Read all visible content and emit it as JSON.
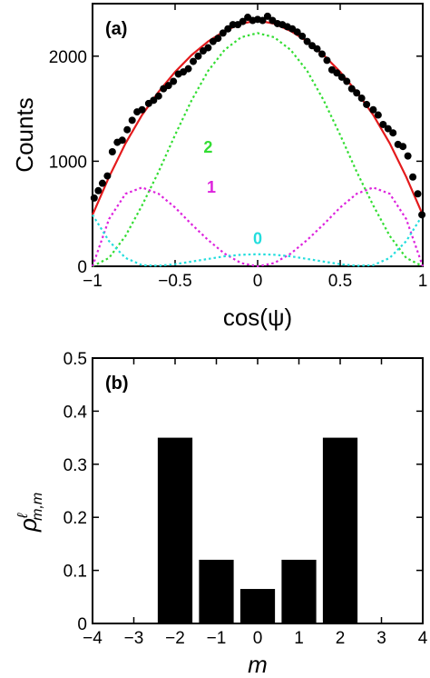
{
  "chart_data": [
    {
      "type": "scatter",
      "panel_label": "(a)",
      "xlabel": "cos(ψ)",
      "ylabel": "Counts",
      "xlim": [
        -1,
        1
      ],
      "ylim": [
        0,
        2500
      ],
      "x_ticks": [
        -1,
        -0.5,
        0,
        0.5,
        1
      ],
      "x_tick_labels": [
        "−1",
        "−0.5",
        "0",
        "0.5",
        "1"
      ],
      "y_ticks": [
        0,
        1000,
        2000
      ],
      "y_tick_labels": [
        "0",
        "1000",
        "2000"
      ],
      "grid": false,
      "points": {
        "color": "#000000",
        "x": [
          -0.99,
          -0.965,
          -0.94,
          -0.91,
          -0.88,
          -0.85,
          -0.82,
          -0.79,
          -0.76,
          -0.73,
          -0.7,
          -0.66,
          -0.63,
          -0.6,
          -0.57,
          -0.54,
          -0.51,
          -0.48,
          -0.45,
          -0.42,
          -0.39,
          -0.36,
          -0.33,
          -0.3,
          -0.27,
          -0.24,
          -0.21,
          -0.18,
          -0.15,
          -0.12,
          -0.09,
          -0.06,
          -0.03,
          0.0,
          0.03,
          0.06,
          0.09,
          0.12,
          0.15,
          0.18,
          0.21,
          0.24,
          0.27,
          0.3,
          0.33,
          0.36,
          0.39,
          0.42,
          0.45,
          0.48,
          0.51,
          0.54,
          0.57,
          0.6,
          0.63,
          0.66,
          0.7,
          0.73,
          0.76,
          0.79,
          0.82,
          0.85,
          0.88,
          0.91,
          0.94,
          0.97,
          0.995
        ],
        "y": [
          650,
          720,
          790,
          860,
          1090,
          1180,
          1200,
          1300,
          1390,
          1470,
          1490,
          1550,
          1580,
          1620,
          1690,
          1720,
          1760,
          1830,
          1850,
          1880,
          1950,
          2000,
          2050,
          2080,
          2140,
          2170,
          2220,
          2260,
          2300,
          2300,
          2330,
          2370,
          2340,
          2350,
          2340,
          2380,
          2340,
          2310,
          2300,
          2280,
          2260,
          2230,
          2190,
          2140,
          2100,
          2070,
          2020,
          1960,
          1870,
          1840,
          1800,
          1760,
          1690,
          1650,
          1600,
          1540,
          1490,
          1440,
          1350,
          1310,
          1270,
          1160,
          1140,
          1050,
          850,
          690,
          490
        ]
      },
      "series": [
        {
          "name": "",
          "color": "#e41a1c",
          "style": "solid",
          "x": [
            -1,
            -0.9,
            -0.8,
            -0.7,
            -0.6,
            -0.5,
            -0.4,
            -0.3,
            -0.2,
            -0.1,
            0,
            0.1,
            0.2,
            0.3,
            0.4,
            0.5,
            0.6,
            0.7,
            0.8,
            0.9,
            1
          ],
          "y": [
            490,
            850,
            1170,
            1440,
            1660,
            1850,
            2010,
            2140,
            2240,
            2310,
            2340,
            2310,
            2240,
            2140,
            2010,
            1850,
            1660,
            1440,
            1170,
            850,
            490
          ]
        },
        {
          "name": "2",
          "color": "#33dd33",
          "style": "dotted",
          "x": [
            -1,
            -0.9,
            -0.8,
            -0.7,
            -0.6,
            -0.5,
            -0.4,
            -0.3,
            -0.2,
            -0.1,
            0,
            0.1,
            0.2,
            0.3,
            0.4,
            0.5,
            0.6,
            0.7,
            0.8,
            0.9,
            1
          ],
          "y": [
            0,
            80,
            290,
            580,
            900,
            1250,
            1580,
            1860,
            2060,
            2180,
            2220,
            2180,
            2060,
            1860,
            1580,
            1250,
            900,
            580,
            290,
            80,
            0
          ]
        },
        {
          "name": "1",
          "color": "#dd22dd",
          "style": "dotted",
          "x": [
            -1,
            -0.9,
            -0.8,
            -0.7,
            -0.6,
            -0.5,
            -0.4,
            -0.3,
            -0.2,
            -0.1,
            0,
            0.1,
            0.2,
            0.3,
            0.4,
            0.5,
            0.6,
            0.7,
            0.8,
            0.9,
            1
          ],
          "y": [
            0,
            450,
            690,
            750,
            690,
            560,
            400,
            250,
            120,
            30,
            0,
            30,
            120,
            250,
            400,
            560,
            690,
            750,
            690,
            450,
            0
          ]
        },
        {
          "name": "0",
          "color": "#22dddd",
          "style": "dotted",
          "x": [
            -1,
            -0.9,
            -0.8,
            -0.7,
            -0.6,
            -0.5,
            -0.4,
            -0.3,
            -0.2,
            -0.1,
            0,
            0.1,
            0.2,
            0.3,
            0.4,
            0.5,
            0.6,
            0.7,
            0.8,
            0.9,
            1
          ],
          "y": [
            490,
            240,
            80,
            10,
            5,
            20,
            45,
            70,
            95,
            110,
            115,
            110,
            95,
            70,
            45,
            20,
            5,
            10,
            80,
            240,
            490
          ]
        }
      ]
    },
    {
      "type": "bar",
      "panel_label": "(b)",
      "xlabel": "m",
      "ylabel": "ρ^ℓ_{m,m}",
      "ylabel_parts": {
        "base": "ρ",
        "sup": "ℓ",
        "sub": "m,m"
      },
      "xlim": [
        -4,
        4
      ],
      "ylim": [
        0,
        0.5
      ],
      "x_ticks": [
        -4,
        -3,
        -2,
        -1,
        0,
        1,
        2,
        3,
        4
      ],
      "x_tick_labels": [
        "−4",
        "−3",
        "−2",
        "−1",
        "0",
        "1",
        "2",
        "3",
        "4"
      ],
      "y_ticks": [
        0,
        0.1,
        0.2,
        0.3,
        0.4,
        0.5
      ],
      "y_tick_labels": [
        "0",
        "0.1",
        "0.2",
        "0.3",
        "0.4",
        "0.5"
      ],
      "grid": false,
      "categories": [
        -2,
        -1,
        0,
        1,
        2
      ],
      "values": [
        0.35,
        0.12,
        0.065,
        0.12,
        0.35
      ],
      "bar_color": "#000000"
    }
  ]
}
